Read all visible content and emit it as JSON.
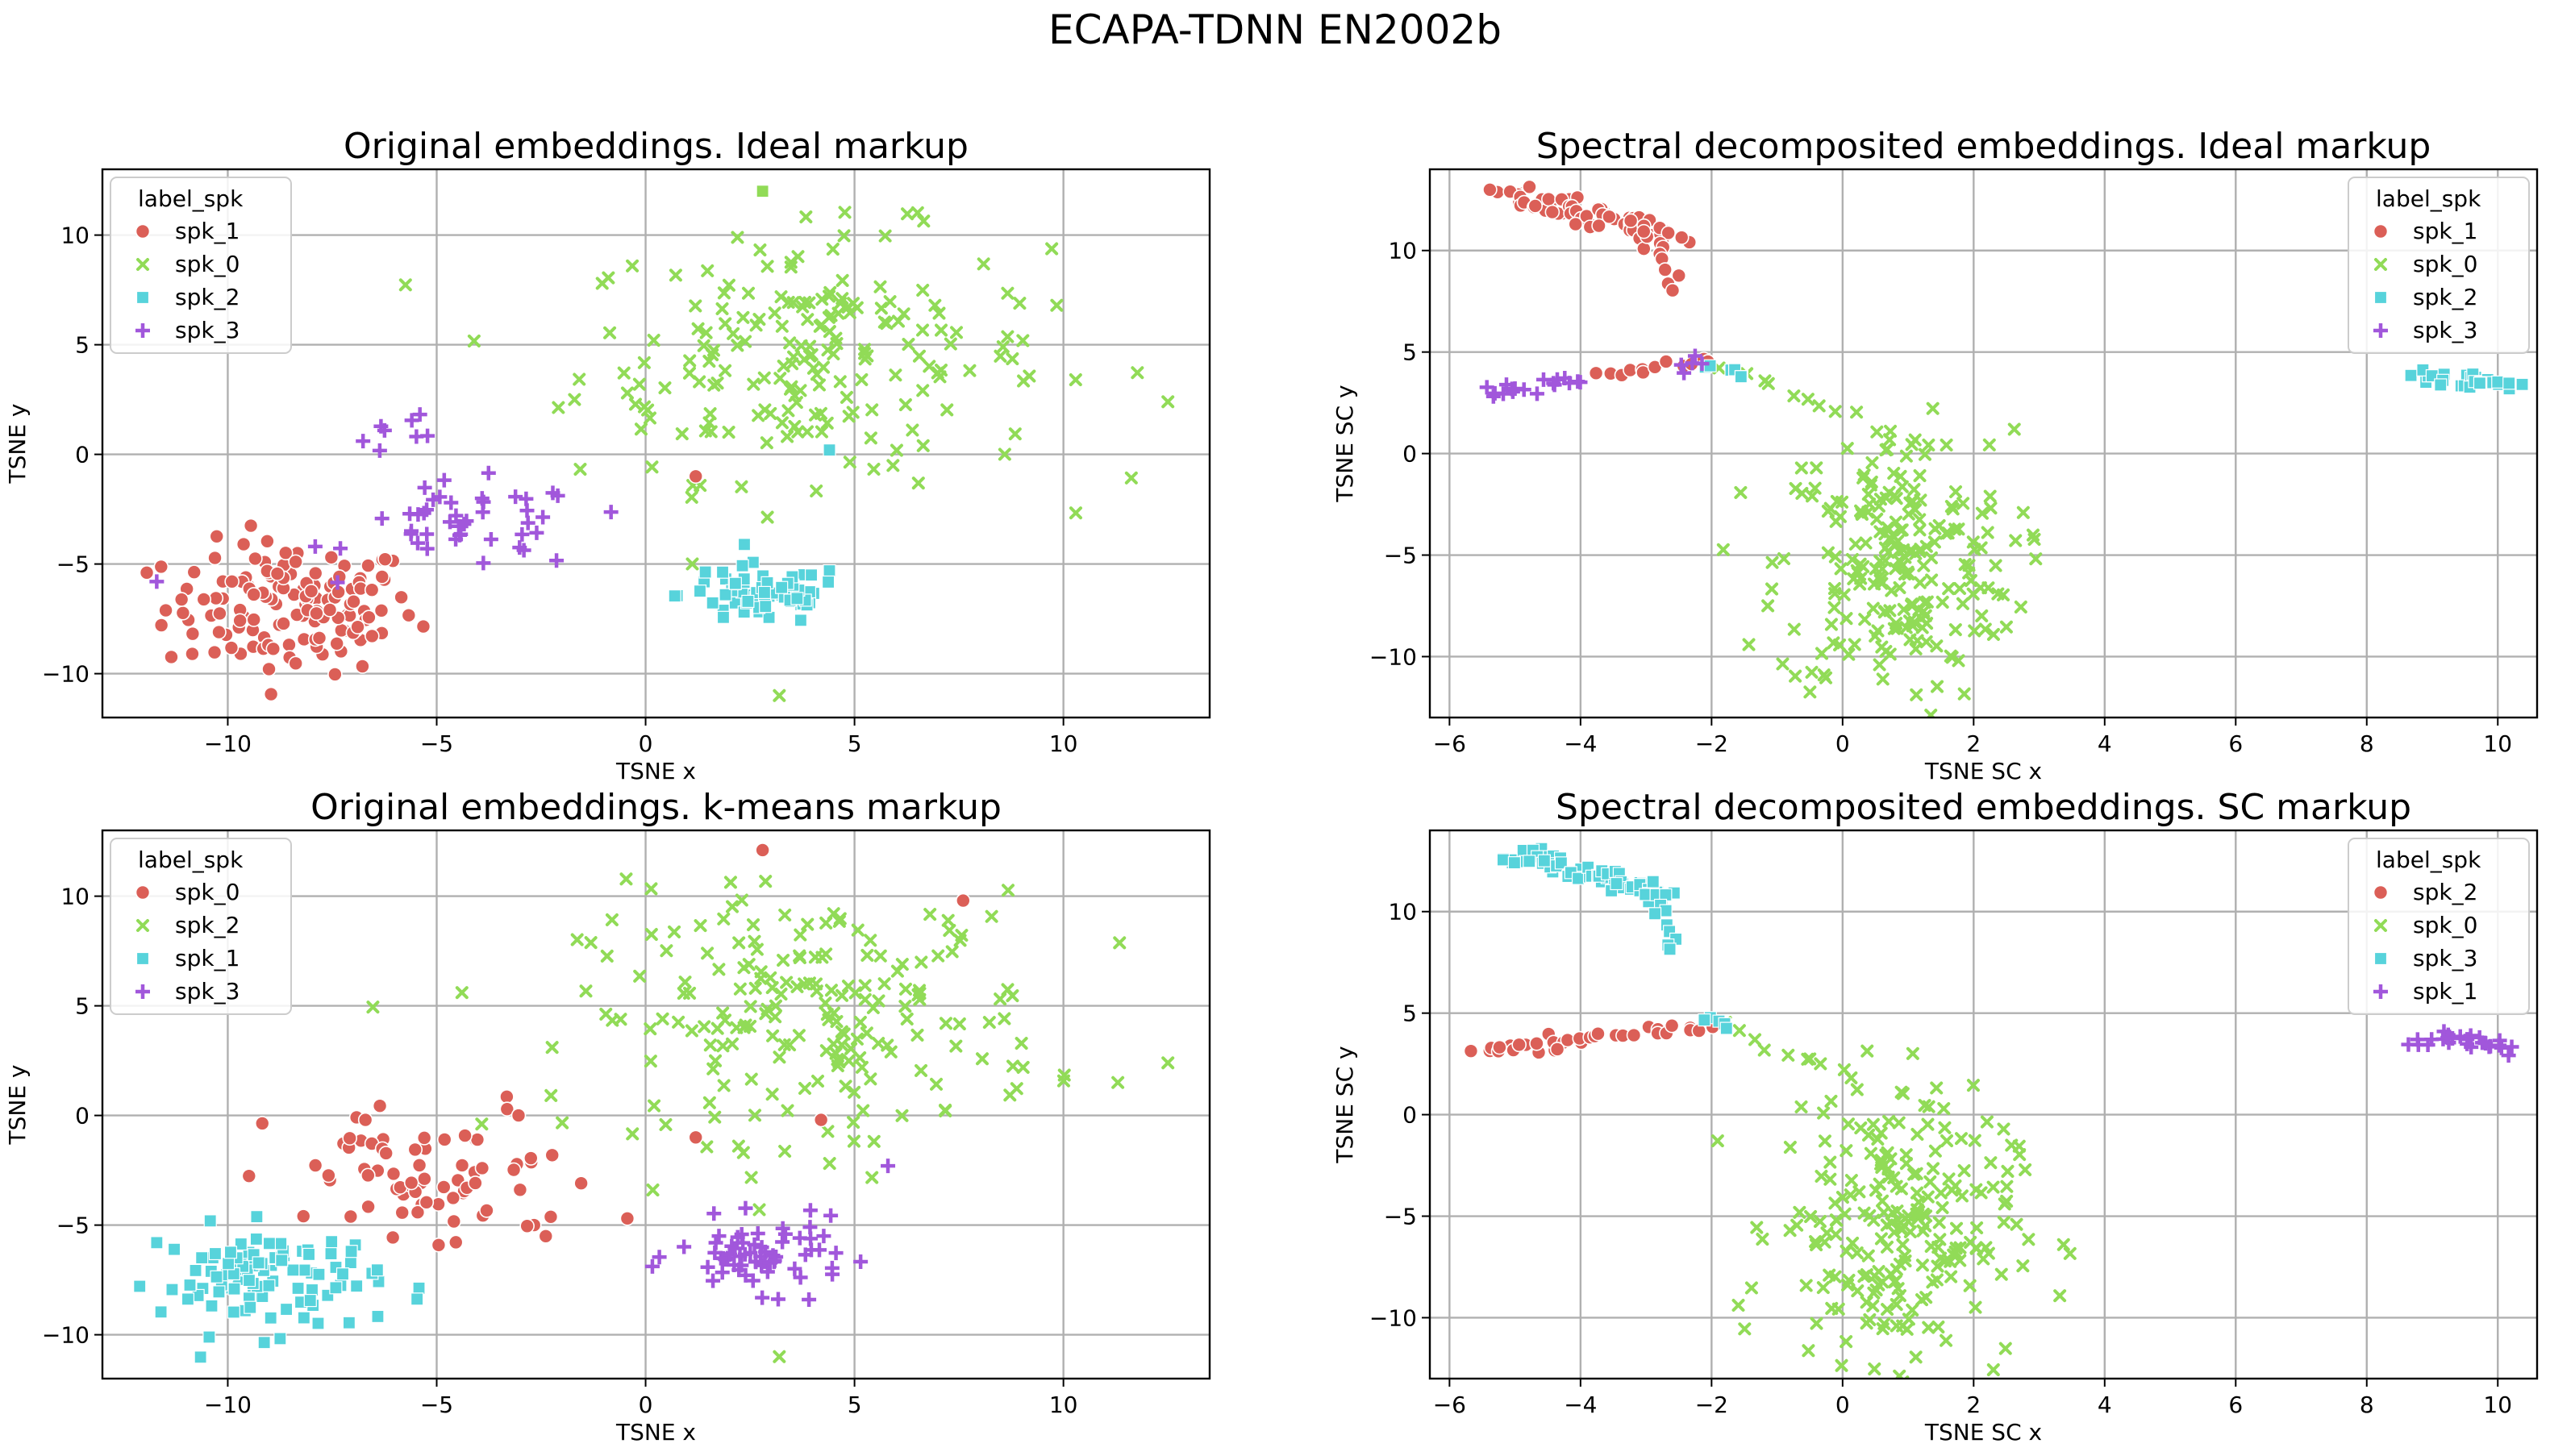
{
  "figure": {
    "suptitle": "ECAPA-TDNN EN2002b"
  },
  "palette": {
    "spk_1": "#db5f57",
    "spk_0": "#91db57",
    "spk_2": "#57d3db",
    "spk_3": "#a157db",
    "legend_border": "#cccccc"
  },
  "chart_data": [
    {
      "type": "scatter",
      "title": "Original embeddings. Ideal markup",
      "xlabel": "TSNE x",
      "ylabel": "TSNE y",
      "xlim": [
        -13,
        13.5
      ],
      "ylim": [
        -12,
        13
      ],
      "xticks": [
        -10,
        -5,
        0,
        5,
        10
      ],
      "yticks": [
        -10,
        -5,
        0,
        5,
        10
      ],
      "tick_labels_x": [
        "−10",
        "−5",
        "0",
        "5",
        "10"
      ],
      "tick_labels_y": [
        "−10",
        "−5",
        "0",
        "5",
        "10"
      ],
      "grid": true,
      "legend": {
        "title": "label_spk",
        "placement": "top-left",
        "entries": [
          "spk_1",
          "spk_0",
          "spk_2",
          "spk_3"
        ]
      },
      "series": [
        {
          "name": "spk_1",
          "marker": "circle",
          "color": "#db5f57",
          "clusters": [
            {
              "cx": -8.5,
              "cy": -7,
              "sx": 1.5,
              "sy": 1.5,
              "n": 140
            }
          ]
        },
        {
          "name": "spk_0",
          "marker": "x",
          "color": "#91db57",
          "clusters": [
            {
              "cx": 4,
              "cy": 4.5,
              "sx": 2.8,
              "sy": 2.8,
              "n": 200
            }
          ]
        },
        {
          "name": "spk_2",
          "marker": "square",
          "color": "#57d3db",
          "clusters": [
            {
              "cx": 2.8,
              "cy": -6.4,
              "sx": 1.0,
              "sy": 0.7,
              "n": 70
            }
          ]
        },
        {
          "name": "spk_3",
          "marker": "plus",
          "color": "#a157db",
          "clusters": [
            {
              "cx": -4.2,
              "cy": -3.3,
              "sx": 1.4,
              "sy": 1.0,
              "n": 45
            },
            {
              "cx": -5.5,
              "cy": 1.2,
              "sx": 0.8,
              "sy": 0.6,
              "n": 8
            }
          ]
        }
      ],
      "points": [
        {
          "series": "spk_0",
          "x": 2.8,
          "y": 12,
          "marker": "square"
        },
        {
          "series": "spk_0",
          "x": 12.5,
          "y": 2.4
        },
        {
          "series": "spk_0",
          "x": 3.2,
          "y": -11
        },
        {
          "series": "spk_1",
          "x": 1.2,
          "y": -1
        },
        {
          "series": "spk_2",
          "x": 4.4,
          "y": 0.2
        },
        {
          "series": "spk_3",
          "x": -11.7,
          "y": -5.8
        }
      ]
    },
    {
      "type": "scatter",
      "title": "Spectral decomposited embeddings. Ideal markup",
      "xlabel": "TSNE SC x",
      "ylabel": "TSNE SC y",
      "xlim": [
        -6.3,
        10.6
      ],
      "ylim": [
        -13,
        14
      ],
      "xticks": [
        -6,
        -4,
        -2,
        0,
        2,
        4,
        6,
        8,
        10
      ],
      "yticks": [
        -10,
        -5,
        0,
        5,
        10
      ],
      "tick_labels_x": [
        "−6",
        "−4",
        "−2",
        "0",
        "2",
        "4",
        "6",
        "8",
        "10"
      ],
      "tick_labels_y": [
        "−10",
        "−5",
        "0",
        "5",
        "10"
      ],
      "grid": true,
      "legend": {
        "title": "label_spk",
        "placement": "top-right",
        "entries": [
          "spk_1",
          "spk_0",
          "spk_2",
          "spk_3"
        ]
      },
      "series": [
        {
          "name": "spk_1",
          "marker": "circle",
          "color": "#db5f57",
          "strands": [
            {
              "x0": -5.1,
              "y0": 12.8,
              "x1": -2.6,
              "y1": 10.8,
              "n": 70,
              "jitter": 0.25
            },
            {
              "x0": -2.8,
              "y0": 10.4,
              "x1": -2.6,
              "y1": 8,
              "n": 8,
              "jitter": 0.1
            },
            {
              "x0": -3.8,
              "y0": 3.8,
              "x1": -2.0,
              "y1": 4.6,
              "n": 12,
              "jitter": 0.15
            }
          ]
        },
        {
          "name": "spk_0",
          "marker": "x",
          "color": "#91db57",
          "clusters": [
            {
              "cx": 0.8,
              "cy": -5.5,
              "sx": 0.9,
              "sy": 3.3,
              "n": 220
            }
          ],
          "strands": [
            {
              "x0": -1.8,
              "y0": 4.2,
              "x1": 1.4,
              "y1": 0.2,
              "n": 14,
              "jitter": 0.2
            }
          ]
        },
        {
          "name": "spk_2",
          "marker": "square",
          "color": "#57d3db",
          "strands": [
            {
              "x0": 8.8,
              "y0": 3.8,
              "x1": 10.2,
              "y1": 3.4,
              "n": 26,
              "jitter": 0.2
            },
            {
              "x0": -2.0,
              "y0": 4.4,
              "x1": -1.5,
              "y1": 3.6,
              "n": 6,
              "jitter": 0.15
            }
          ]
        },
        {
          "name": "spk_3",
          "marker": "plus",
          "color": "#a157db",
          "strands": [
            {
              "x0": -5.5,
              "y0": 3.1,
              "x1": -4.0,
              "y1": 3.6,
              "n": 18,
              "jitter": 0.2
            },
            {
              "x0": -2.5,
              "y0": 4.0,
              "x1": -2.1,
              "y1": 4.6,
              "n": 5,
              "jitter": 0.15
            }
          ]
        }
      ]
    },
    {
      "type": "scatter",
      "title": "Original embeddings. k-means markup",
      "xlabel": "TSNE x",
      "ylabel": "TSNE y",
      "xlim": [
        -13,
        13.5
      ],
      "ylim": [
        -12,
        13
      ],
      "xticks": [
        -10,
        -5,
        0,
        5,
        10
      ],
      "yticks": [
        -10,
        -5,
        0,
        5,
        10
      ],
      "tick_labels_x": [
        "−10",
        "−5",
        "0",
        "5",
        "10"
      ],
      "tick_labels_y": [
        "−10",
        "−5",
        "0",
        "5",
        "10"
      ],
      "grid": true,
      "legend": {
        "title": "label_spk",
        "placement": "top-left",
        "entries": [
          "spk_0",
          "spk_2",
          "spk_1",
          "spk_3"
        ]
      },
      "series": [
        {
          "name": "spk_0",
          "marker": "circle",
          "color": "#db5f57",
          "clusters": [
            {
              "cx": -5.0,
              "cy": -3.0,
              "sx": 2.0,
              "sy": 1.8,
              "n": 75
            }
          ]
        },
        {
          "name": "spk_2",
          "marker": "x",
          "color": "#91db57",
          "clusters": [
            {
              "cx": 4,
              "cy": 4.5,
              "sx": 2.8,
              "sy": 2.8,
              "n": 200
            }
          ]
        },
        {
          "name": "spk_1",
          "marker": "square",
          "color": "#57d3db",
          "clusters": [
            {
              "cx": -9.0,
              "cy": -7.5,
              "sx": 1.3,
              "sy": 1.2,
              "n": 100
            }
          ]
        },
        {
          "name": "spk_3",
          "marker": "plus",
          "color": "#a157db",
          "clusters": [
            {
              "cx": 2.8,
              "cy": -6.4,
              "sx": 1.0,
              "sy": 0.8,
              "n": 65
            }
          ]
        }
      ],
      "points": [
        {
          "series": "spk_0",
          "x": 2.8,
          "y": 12.1
        },
        {
          "series": "spk_0",
          "x": 7.6,
          "y": 9.8
        },
        {
          "series": "spk_0",
          "x": 1.2,
          "y": -1.0
        },
        {
          "series": "spk_0",
          "x": 4.2,
          "y": -0.2
        },
        {
          "series": "spk_2",
          "x": 12.5,
          "y": 2.4
        },
        {
          "series": "spk_2",
          "x": 3.2,
          "y": -11
        },
        {
          "series": "spk_3",
          "x": 5.8,
          "y": -2.3
        },
        {
          "series": "spk_1",
          "x": -11.7,
          "y": -5.8
        }
      ]
    },
    {
      "type": "scatter",
      "title": "Spectral decomposited embeddings. SC markup",
      "xlabel": "TSNE SC x",
      "ylabel": "TSNE SC y",
      "xlim": [
        -6.3,
        10.6
      ],
      "ylim": [
        -13,
        14
      ],
      "xticks": [
        -6,
        -4,
        -2,
        0,
        2,
        4,
        6,
        8,
        10
      ],
      "yticks": [
        -10,
        -5,
        0,
        5,
        10
      ],
      "tick_labels_x": [
        "−6",
        "−4",
        "−2",
        "0",
        "2",
        "4",
        "6",
        "8",
        "10"
      ],
      "tick_labels_y": [
        "−10",
        "−5",
        "0",
        "5",
        "10"
      ],
      "grid": true,
      "legend": {
        "title": "label_spk",
        "placement": "top-right",
        "entries": [
          "spk_2",
          "spk_0",
          "spk_3",
          "spk_1"
        ]
      },
      "series": [
        {
          "name": "spk_2",
          "marker": "circle",
          "color": "#db5f57",
          "strands": [
            {
              "x0": -5.5,
              "y0": 3.1,
              "x1": -3.9,
              "y1": 3.6,
              "n": 20,
              "jitter": 0.2
            },
            {
              "x0": -3.8,
              "y0": 3.8,
              "x1": -2.0,
              "y1": 4.3,
              "n": 14,
              "jitter": 0.18
            }
          ]
        },
        {
          "name": "spk_0",
          "marker": "x",
          "color": "#91db57",
          "clusters": [
            {
              "cx": 0.8,
              "cy": -5.5,
              "sx": 0.9,
              "sy": 3.3,
              "n": 220
            }
          ],
          "strands": [
            {
              "x0": -1.8,
              "y0": 4.2,
              "x1": 1.4,
              "y1": 0.2,
              "n": 14,
              "jitter": 0.2
            }
          ]
        },
        {
          "name": "spk_3",
          "marker": "square",
          "color": "#57d3db",
          "strands": [
            {
              "x0": -5.1,
              "y0": 12.8,
              "x1": -2.6,
              "y1": 10.8,
              "n": 70,
              "jitter": 0.25
            },
            {
              "x0": -2.8,
              "y0": 10.4,
              "x1": -2.6,
              "y1": 8,
              "n": 8,
              "jitter": 0.1
            },
            {
              "x0": -2.1,
              "y0": 5.0,
              "x1": -1.8,
              "y1": 4.3,
              "n": 5,
              "jitter": 0.12
            }
          ]
        },
        {
          "name": "spk_1",
          "marker": "plus",
          "color": "#a157db",
          "strands": [
            {
              "x0": 8.8,
              "y0": 3.8,
              "x1": 10.2,
              "y1": 3.4,
              "n": 26,
              "jitter": 0.2
            }
          ]
        }
      ]
    }
  ]
}
